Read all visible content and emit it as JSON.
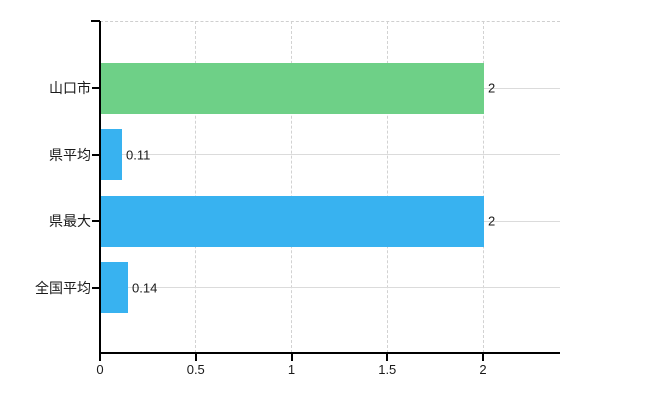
{
  "chart_data": {
    "type": "bar",
    "orientation": "horizontal",
    "categories": [
      "山口市",
      "県平均",
      "県最大",
      "全国平均"
    ],
    "values": [
      2,
      0.11,
      2,
      0.14
    ],
    "value_labels": [
      "2",
      "0.11",
      "2",
      "0.14"
    ],
    "bar_colors": [
      "#6ed087",
      "#38b2f0",
      "#38b2f0",
      "#38b2f0"
    ],
    "x_axis": {
      "tick_labels": [
        "0",
        "0.5",
        "1",
        "1.5",
        "2"
      ],
      "tick_values": [
        0,
        0.5,
        1,
        1.5,
        2
      ],
      "range": [
        0,
        2.4
      ]
    },
    "grid": true,
    "legend": false
  },
  "style_colors": {
    "background": "#ffffff",
    "axis_line": "#000000",
    "grid_line": "#d9d9d9",
    "text": "#1a1a1a",
    "bar_green": "#6ed087",
    "bar_blue": "#38b2f0"
  }
}
